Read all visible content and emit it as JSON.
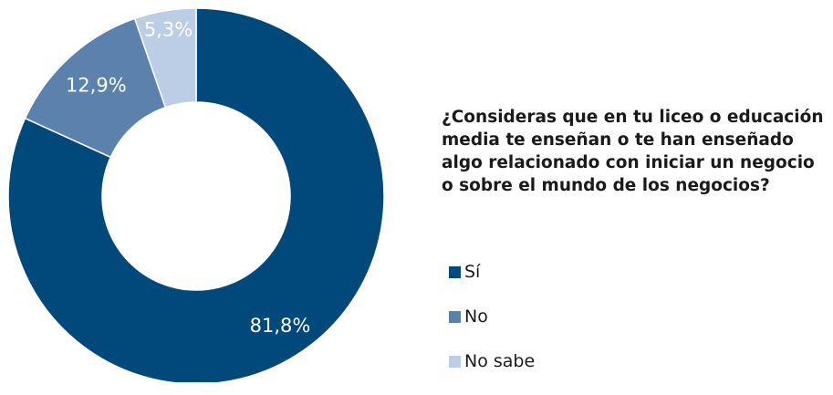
{
  "chart_data": {
    "type": "pie",
    "style": "donut",
    "title": "¿Consideras que en tu liceo o educación media te enseñan o te han enseñado algo relacionado con iniciar un negocio o sobre el mundo de los negocios?",
    "categories": [
      "Sí",
      "No",
      "No sabe"
    ],
    "values": [
      81.8,
      12.9,
      5.3
    ],
    "value_labels": [
      "81,8%",
      "12,9%",
      "5,3%"
    ],
    "colors": [
      "#02497b",
      "#5b82ad",
      "#bccde6"
    ],
    "legend_position": "right"
  },
  "legend": {
    "items": [
      {
        "label": "Sí",
        "color": "#02497b"
      },
      {
        "label": "No",
        "color": "#5b82ad"
      },
      {
        "label": "No sabe",
        "color": "#bccde6"
      }
    ]
  }
}
